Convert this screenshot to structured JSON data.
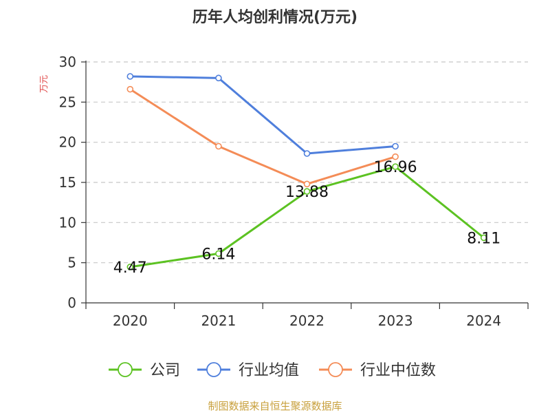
{
  "colors": {
    "company": "#5cc222",
    "industry_avg": "#4f7fdc",
    "industry_median": "#f48c57",
    "source": "#c8a03c",
    "unit": "#e04848"
  },
  "footer": {
    "source": "制图数据来自恒生聚源数据库"
  },
  "chart_data": {
    "type": "line",
    "title": "历年人均创利情况(万元)",
    "ylabel": "万元",
    "xlabel": "",
    "ylim": [
      0,
      30
    ],
    "yticks": [
      0,
      5,
      10,
      15,
      20,
      25,
      30
    ],
    "grid": true,
    "legend_position": "bottom",
    "categories": [
      "2020",
      "2021",
      "2022",
      "2023",
      "2024"
    ],
    "series": [
      {
        "name": "公司",
        "key": "company",
        "values": [
          4.47,
          6.14,
          13.88,
          16.96,
          8.11
        ],
        "show_labels": true
      },
      {
        "name": "行业均值",
        "key": "industry_avg",
        "values": [
          28.2,
          28.0,
          18.6,
          19.5,
          null
        ],
        "show_labels": false
      },
      {
        "name": "行业中位数",
        "key": "industry_median",
        "values": [
          26.6,
          19.5,
          14.8,
          18.2,
          null
        ],
        "show_labels": false
      }
    ]
  }
}
